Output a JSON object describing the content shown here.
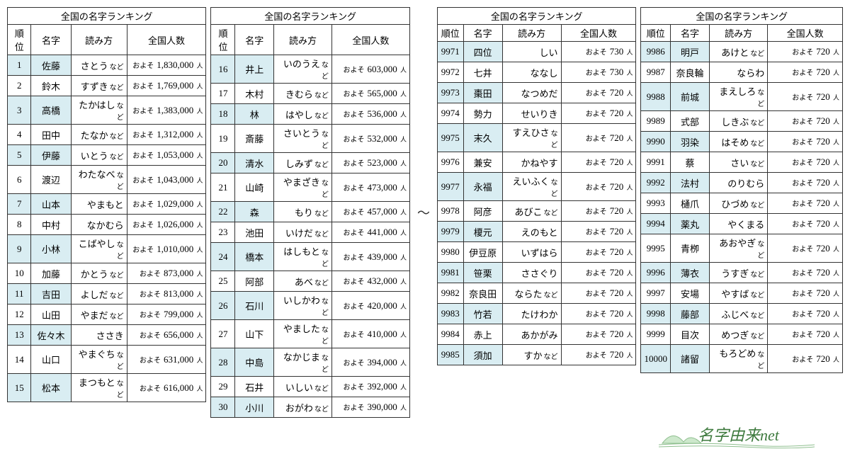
{
  "title": "全国の名字ランキング",
  "headers": {
    "rank": "順位",
    "name": "名字",
    "reading": "読み方",
    "count": "全国人数"
  },
  "approx": "およそ",
  "suffix": "人",
  "etc": "など",
  "separator": "〜",
  "logo_text": "名字由来net",
  "colors": {
    "alt_bg": "#d9edf2",
    "border": "#333333",
    "logo_color": "#3e7a3e",
    "mountain_fill": "#cde8cc"
  },
  "tables": [
    [
      {
        "rank": "1",
        "name": "佐藤",
        "reading": "さとう",
        "etc": true,
        "count": "1,830,000",
        "alt": true
      },
      {
        "rank": "2",
        "name": "鈴木",
        "reading": "すずき",
        "etc": true,
        "count": "1,769,000",
        "alt": false
      },
      {
        "rank": "3",
        "name": "高橋",
        "reading": "たかはし",
        "etc": true,
        "count": "1,383,000",
        "alt": true
      },
      {
        "rank": "4",
        "name": "田中",
        "reading": "たなか",
        "etc": true,
        "count": "1,312,000",
        "alt": false
      },
      {
        "rank": "5",
        "name": "伊藤",
        "reading": "いとう",
        "etc": true,
        "count": "1,053,000",
        "alt": true
      },
      {
        "rank": "6",
        "name": "渡辺",
        "reading": "わたなべ",
        "etc": true,
        "count": "1,043,000",
        "alt": false
      },
      {
        "rank": "7",
        "name": "山本",
        "reading": "やまもと",
        "etc": false,
        "count": "1,029,000",
        "alt": true
      },
      {
        "rank": "8",
        "name": "中村",
        "reading": "なかむら",
        "etc": false,
        "count": "1,026,000",
        "alt": false
      },
      {
        "rank": "9",
        "name": "小林",
        "reading": "こばやし",
        "etc": true,
        "count": "1,010,000",
        "alt": true
      },
      {
        "rank": "10",
        "name": "加藤",
        "reading": "かとう",
        "etc": true,
        "count": "873,000",
        "alt": false
      },
      {
        "rank": "11",
        "name": "吉田",
        "reading": "よしだ",
        "etc": true,
        "count": "813,000",
        "alt": true
      },
      {
        "rank": "12",
        "name": "山田",
        "reading": "やまだ",
        "etc": true,
        "count": "799,000",
        "alt": false
      },
      {
        "rank": "13",
        "name": "佐々木",
        "reading": "ささき",
        "etc": false,
        "count": "656,000",
        "alt": true
      },
      {
        "rank": "14",
        "name": "山口",
        "reading": "やまぐち",
        "etc": true,
        "count": "631,000",
        "alt": false
      },
      {
        "rank": "15",
        "name": "松本",
        "reading": "まつもと",
        "etc": true,
        "count": "616,000",
        "alt": true
      }
    ],
    [
      {
        "rank": "16",
        "name": "井上",
        "reading": "いのうえ",
        "etc": true,
        "count": "603,000",
        "alt": true
      },
      {
        "rank": "17",
        "name": "木村",
        "reading": "きむら",
        "etc": true,
        "count": "565,000",
        "alt": false
      },
      {
        "rank": "18",
        "name": "林",
        "reading": "はやし",
        "etc": true,
        "count": "536,000",
        "alt": true
      },
      {
        "rank": "19",
        "name": "斎藤",
        "reading": "さいとう",
        "etc": true,
        "count": "532,000",
        "alt": false
      },
      {
        "rank": "20",
        "name": "清水",
        "reading": "しみず",
        "etc": true,
        "count": "523,000",
        "alt": true
      },
      {
        "rank": "21",
        "name": "山崎",
        "reading": "やまざき",
        "etc": true,
        "count": "473,000",
        "alt": false
      },
      {
        "rank": "22",
        "name": "森",
        "reading": "もり",
        "etc": true,
        "count": "457,000",
        "alt": true
      },
      {
        "rank": "23",
        "name": "池田",
        "reading": "いけだ",
        "etc": true,
        "count": "441,000",
        "alt": false
      },
      {
        "rank": "24",
        "name": "橋本",
        "reading": "はしもと",
        "etc": true,
        "count": "439,000",
        "alt": true
      },
      {
        "rank": "25",
        "name": "阿部",
        "reading": "あべ",
        "etc": true,
        "count": "432,000",
        "alt": false
      },
      {
        "rank": "26",
        "name": "石川",
        "reading": "いしかわ",
        "etc": true,
        "count": "420,000",
        "alt": true
      },
      {
        "rank": "27",
        "name": "山下",
        "reading": "やました",
        "etc": true,
        "count": "410,000",
        "alt": false
      },
      {
        "rank": "28",
        "name": "中島",
        "reading": "なかじま",
        "etc": true,
        "count": "394,000",
        "alt": true
      },
      {
        "rank": "29",
        "name": "石井",
        "reading": "いしい",
        "etc": true,
        "count": "392,000",
        "alt": false
      },
      {
        "rank": "30",
        "name": "小川",
        "reading": "おがわ",
        "etc": true,
        "count": "390,000",
        "alt": true
      }
    ],
    [
      {
        "rank": "9971",
        "name": "四位",
        "reading": "しい",
        "etc": false,
        "count": "730",
        "alt": true
      },
      {
        "rank": "9972",
        "name": "七井",
        "reading": "ななし",
        "etc": false,
        "count": "730",
        "alt": false
      },
      {
        "rank": "9973",
        "name": "棗田",
        "reading": "なつめだ",
        "etc": false,
        "count": "720",
        "alt": true
      },
      {
        "rank": "9974",
        "name": "勢力",
        "reading": "せいりき",
        "etc": false,
        "count": "720",
        "alt": false
      },
      {
        "rank": "9975",
        "name": "末久",
        "reading": "すえひさ",
        "etc": true,
        "count": "720",
        "alt": true
      },
      {
        "rank": "9976",
        "name": "兼安",
        "reading": "かねやす",
        "etc": false,
        "count": "720",
        "alt": false
      },
      {
        "rank": "9977",
        "name": "永福",
        "reading": "えいふく",
        "etc": true,
        "count": "720",
        "alt": true
      },
      {
        "rank": "9978",
        "name": "阿彦",
        "reading": "あびこ",
        "etc": true,
        "count": "720",
        "alt": false
      },
      {
        "rank": "9979",
        "name": "榎元",
        "reading": "えのもと",
        "etc": false,
        "count": "720",
        "alt": true
      },
      {
        "rank": "9980",
        "name": "伊豆原",
        "reading": "いずはら",
        "etc": false,
        "count": "720",
        "alt": false
      },
      {
        "rank": "9981",
        "name": "笹栗",
        "reading": "ささぐり",
        "etc": false,
        "count": "720",
        "alt": true
      },
      {
        "rank": "9982",
        "name": "奈良田",
        "reading": "ならた",
        "etc": true,
        "count": "720",
        "alt": false
      },
      {
        "rank": "9983",
        "name": "竹若",
        "reading": "たけわか",
        "etc": false,
        "count": "720",
        "alt": true
      },
      {
        "rank": "9984",
        "name": "赤上",
        "reading": "あかがみ",
        "etc": false,
        "count": "720",
        "alt": false
      },
      {
        "rank": "9985",
        "name": "須加",
        "reading": "すか",
        "etc": true,
        "count": "720",
        "alt": true
      }
    ],
    [
      {
        "rank": "9986",
        "name": "明戸",
        "reading": "あけと",
        "etc": true,
        "count": "720",
        "alt": true
      },
      {
        "rank": "9987",
        "name": "奈良輪",
        "reading": "ならわ",
        "etc": false,
        "count": "720",
        "alt": false
      },
      {
        "rank": "9988",
        "name": "前城",
        "reading": "まえしろ",
        "etc": true,
        "count": "720",
        "alt": true
      },
      {
        "rank": "9989",
        "name": "式部",
        "reading": "しきぶ",
        "etc": true,
        "count": "720",
        "alt": false
      },
      {
        "rank": "9990",
        "name": "羽染",
        "reading": "はそめ",
        "etc": true,
        "count": "720",
        "alt": true
      },
      {
        "rank": "9991",
        "name": "蔡",
        "reading": "さい",
        "etc": true,
        "count": "720",
        "alt": false
      },
      {
        "rank": "9992",
        "name": "法村",
        "reading": "のりむら",
        "etc": false,
        "count": "720",
        "alt": true
      },
      {
        "rank": "9993",
        "name": "樋爪",
        "reading": "ひづめ",
        "etc": true,
        "count": "720",
        "alt": false
      },
      {
        "rank": "9994",
        "name": "薬丸",
        "reading": "やくまる",
        "etc": false,
        "count": "720",
        "alt": true
      },
      {
        "rank": "9995",
        "name": "青栁",
        "reading": "あおやぎ",
        "etc": true,
        "count": "720",
        "alt": false
      },
      {
        "rank": "9996",
        "name": "薄衣",
        "reading": "うすぎ",
        "etc": true,
        "count": "720",
        "alt": true
      },
      {
        "rank": "9997",
        "name": "安場",
        "reading": "やすば",
        "etc": true,
        "count": "720",
        "alt": false
      },
      {
        "rank": "9998",
        "name": "藤部",
        "reading": "ふじべ",
        "etc": true,
        "count": "720",
        "alt": true
      },
      {
        "rank": "9999",
        "name": "目次",
        "reading": "めつぎ",
        "etc": true,
        "count": "720",
        "alt": false
      },
      {
        "rank": "10000",
        "name": "諸留",
        "reading": "もろどめ",
        "etc": true,
        "count": "720",
        "alt": true
      }
    ]
  ]
}
